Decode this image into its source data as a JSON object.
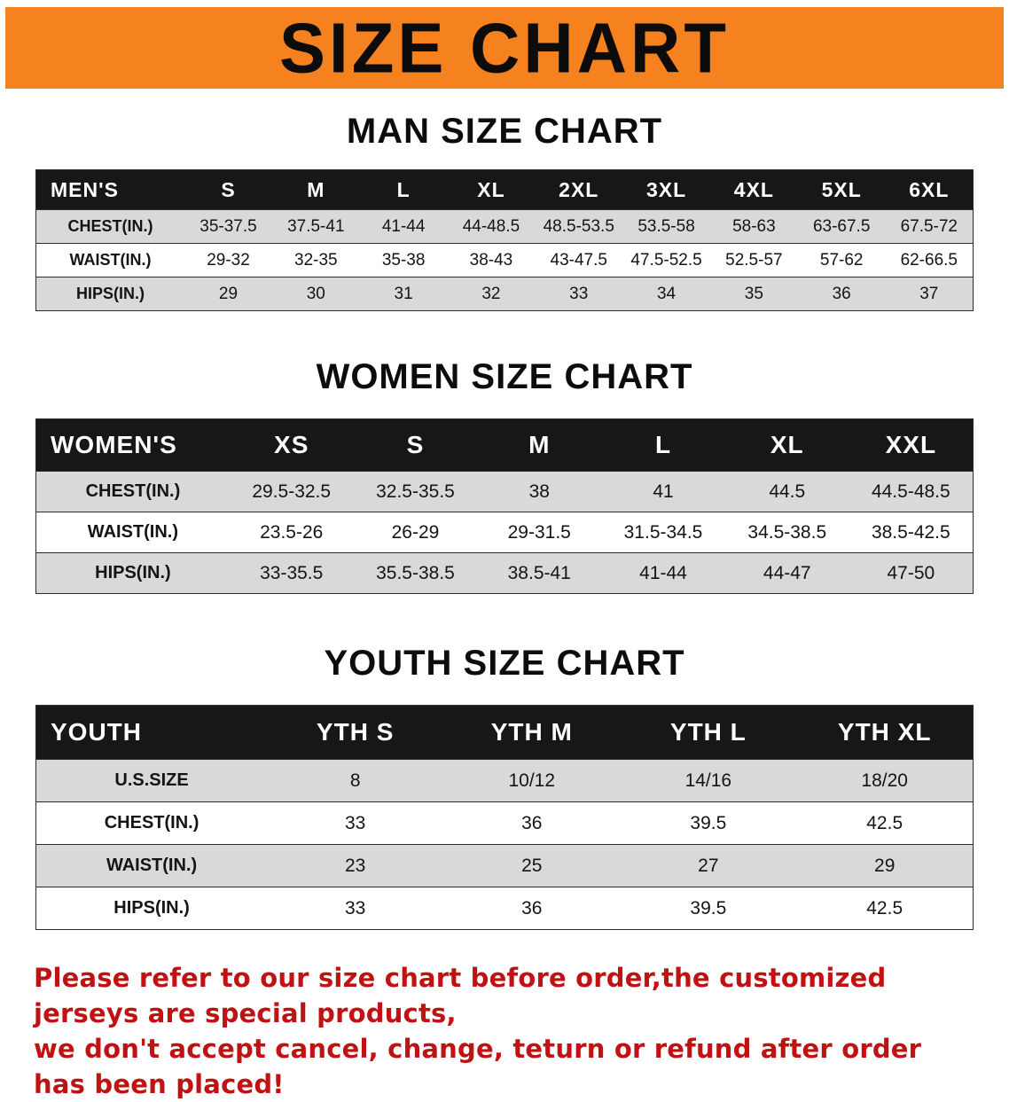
{
  "banner": {
    "title": "SIZE CHART"
  },
  "sections": [
    {
      "heading": "MAN SIZE CHART",
      "table": {
        "header": [
          "MEN'S",
          "S",
          "M",
          "L",
          "XL",
          "2XL",
          "3XL",
          "4XL",
          "5XL",
          "6XL"
        ],
        "rows": [
          [
            "CHEST(IN.)",
            "35-37.5",
            "37.5-41",
            "41-44",
            "44-48.5",
            "48.5-53.5",
            "53.5-58",
            "58-63",
            "63-67.5",
            "67.5-72"
          ],
          [
            "WAIST(IN.)",
            "29-32",
            "32-35",
            "35-38",
            "38-43",
            "43-47.5",
            "47.5-52.5",
            "52.5-57",
            "57-62",
            "62-66.5"
          ],
          [
            "HIPS(IN.)",
            "29",
            "30",
            "31",
            "32",
            "33",
            "34",
            "35",
            "36",
            "37"
          ]
        ]
      }
    },
    {
      "heading": "WOMEN SIZE CHART",
      "table": {
        "header": [
          "WOMEN'S",
          "XS",
          "S",
          "M",
          "L",
          "XL",
          "XXL"
        ],
        "rows": [
          [
            "CHEST(IN.)",
            "29.5-32.5",
            "32.5-35.5",
            "38",
            "41",
            "44.5",
            "44.5-48.5"
          ],
          [
            "WAIST(IN.)",
            "23.5-26",
            "26-29",
            "29-31.5",
            "31.5-34.5",
            "34.5-38.5",
            "38.5-42.5"
          ],
          [
            "HIPS(IN.)",
            "33-35.5",
            "35.5-38.5",
            "38.5-41",
            "41-44",
            "44-47",
            "47-50"
          ]
        ]
      }
    },
    {
      "heading": "YOUTH SIZE CHART",
      "table": {
        "header": [
          "YOUTH",
          "YTH S",
          "YTH M",
          "YTH L",
          "YTH XL"
        ],
        "rows": [
          [
            "U.S.SIZE",
            "8",
            "10/12",
            "14/16",
            "18/20"
          ],
          [
            "CHEST(IN.)",
            "33",
            "36",
            "39.5",
            "42.5"
          ],
          [
            "WAIST(IN.)",
            "23",
            "25",
            "27",
            "29"
          ],
          [
            "HIPS(IN.)",
            "33",
            "36",
            "39.5",
            "42.5"
          ]
        ]
      }
    }
  ],
  "footer": {
    "line1": "Please refer to our size chart before order,the customized jerseys are special products,",
    "line2": "we don't accept cancel, change, teturn or refund after order has been placed!"
  },
  "colors": {
    "banner_bg": "#f5821f",
    "table_header_bg": "#171717",
    "row_stripe": "#d9d9d9",
    "disclaimer_text": "#c01212"
  }
}
